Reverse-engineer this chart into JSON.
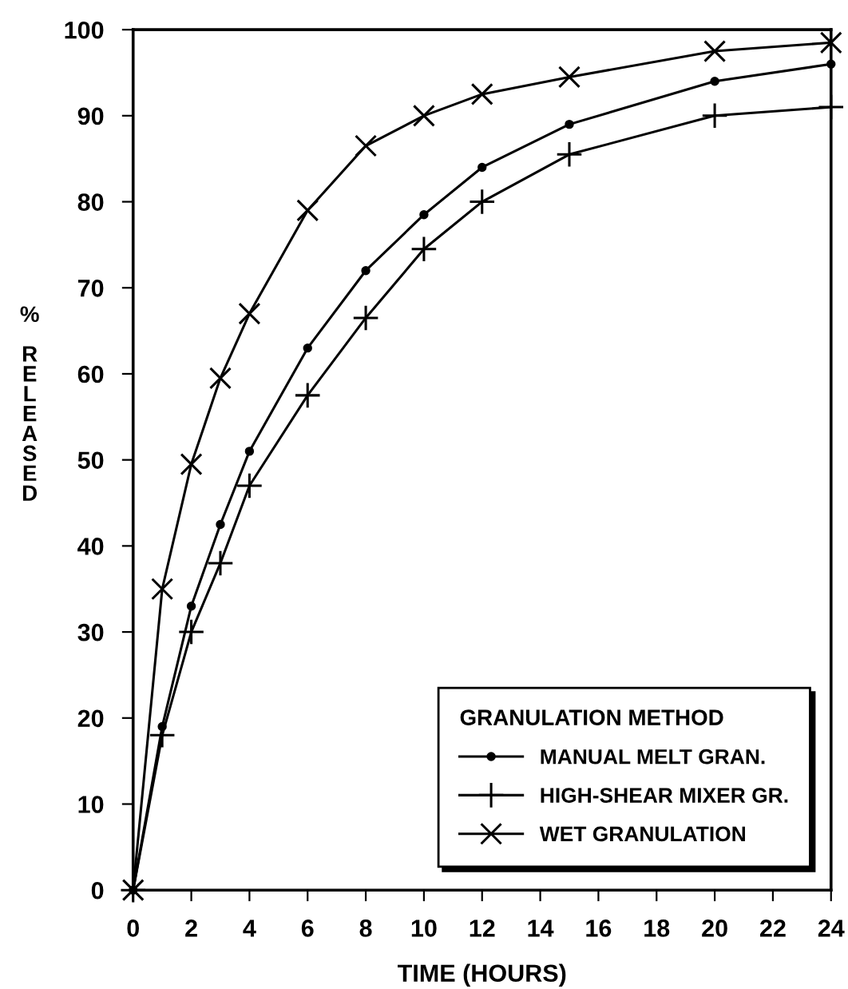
{
  "chart_data": {
    "type": "line",
    "xlabel": "TIME (HOURS)",
    "ylabel": "% RELEASED",
    "legend_title": "GRANULATION METHOD",
    "x": [
      0,
      1,
      2,
      3,
      4,
      6,
      8,
      10,
      12,
      15,
      20,
      24
    ],
    "series": [
      {
        "name": "MANUAL MELT GRAN.",
        "color": "#000000",
        "marker": "circle",
        "values": [
          0,
          19,
          33,
          42.5,
          51,
          63,
          72,
          78.5,
          84,
          89,
          94,
          96
        ]
      },
      {
        "name": "HIGH-SHEAR MIXER GR.",
        "color": "#000000",
        "marker": "plus",
        "values": [
          0,
          18,
          30,
          38,
          47,
          57.5,
          66.5,
          74.5,
          80,
          85.5,
          90,
          91
        ]
      },
      {
        "name": "WET GRANULATION",
        "color": "#000000",
        "marker": "cross",
        "values": [
          0,
          35,
          49.5,
          59.5,
          67,
          79,
          86.5,
          90,
          92.5,
          94.5,
          97.5,
          98.5
        ]
      }
    ],
    "xlim": [
      0,
      24
    ],
    "ylim": [
      0,
      100
    ],
    "xticks": [
      0,
      2,
      4,
      6,
      8,
      10,
      12,
      14,
      16,
      18,
      20,
      22,
      24
    ],
    "yticks": [
      0,
      10,
      20,
      30,
      40,
      50,
      60,
      70,
      80,
      90,
      100
    ],
    "grid": false,
    "legend": "bottom right",
    "line_style": "solid"
  }
}
